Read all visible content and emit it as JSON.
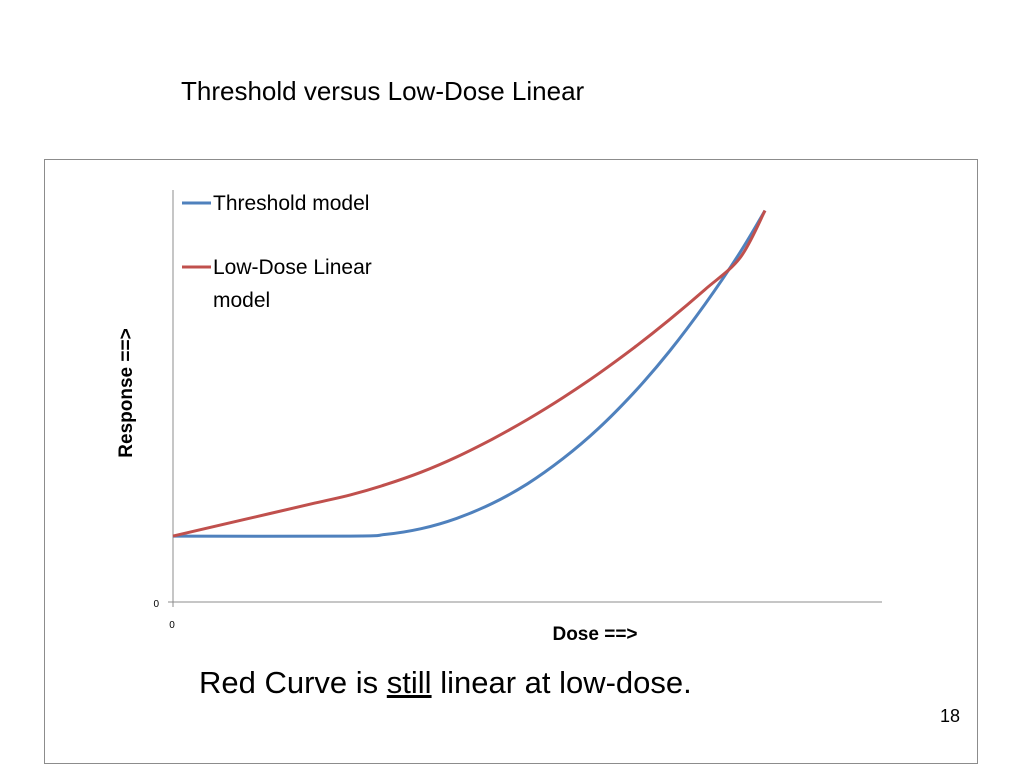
{
  "slide": {
    "title": "Threshold versus Low-Dose Linear",
    "caption_before": "Red Curve is ",
    "caption_underlined": "still",
    "caption_after": " linear at low-dose.",
    "page_number": "18"
  },
  "chart_data": {
    "type": "line",
    "title": "",
    "xlabel": "Dose ==>",
    "ylabel": "Response ==>",
    "x_tick_labels": [
      "0"
    ],
    "y_tick_labels": [
      "0"
    ],
    "xlim": [
      0,
      100
    ],
    "ylim": [
      0,
      100
    ],
    "grid": false,
    "legend_position": "top-left",
    "series": [
      {
        "name": "Threshold model",
        "color": "#4f81bd",
        "x": [
          0,
          25,
          30,
          35,
          40,
          45,
          50,
          55,
          60,
          65,
          70,
          75,
          80,
          83.5
        ],
        "y": [
          16,
          16,
          16.4,
          17.8,
          20.3,
          23.9,
          28.7,
          34.8,
          42.1,
          50.8,
          60.8,
          72.2,
          84.9,
          95
        ]
      },
      {
        "name": "Low-Dose Linear model",
        "color": "#c0504d",
        "x": [
          0,
          10,
          20,
          25,
          30,
          35,
          40,
          45,
          50,
          55,
          60,
          65,
          70,
          75,
          80,
          83.5
        ],
        "y": [
          16,
          20,
          24,
          26,
          28.5,
          31.5,
          35.2,
          39.5,
          44.3,
          49.6,
          55.4,
          61.7,
          68.5,
          75.8,
          83.6,
          95
        ]
      }
    ]
  }
}
